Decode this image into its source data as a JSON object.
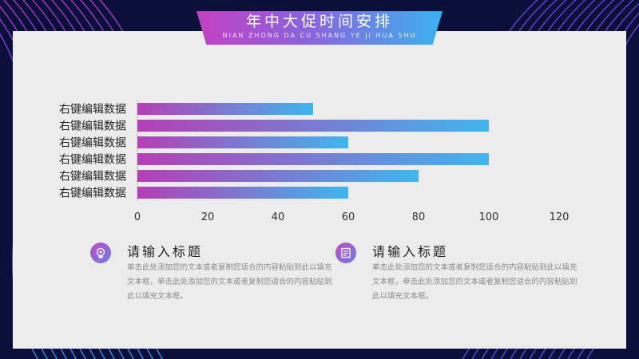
{
  "slide": {
    "title": "年中大促时间安排",
    "subtitle": "NIAN ZHONG DA CU SHANG YE JI HUA SHU"
  },
  "chart_data": {
    "type": "bar",
    "orientation": "horizontal",
    "categories": [
      "右键编辑数据",
      "右键编辑数据",
      "右键编辑数据",
      "右键编辑数据",
      "右键编辑数据",
      "右键编辑数据"
    ],
    "values": [
      50,
      100,
      60,
      100,
      80,
      60
    ],
    "xlim": [
      0,
      120
    ],
    "x_ticks": [
      "0",
      "20",
      "40",
      "60",
      "80",
      "100",
      "120"
    ],
    "grid": false,
    "legend": "none",
    "bar_gradient": [
      "#b53fb5",
      "#3fb6ee"
    ]
  },
  "info": [
    {
      "icon": "head-gear-icon",
      "title": "请输入标题",
      "body": "单击此处添加您的文本或者复制您适合的内容粘贴到此以填充文本框，单击此处添加您的文本或者复制您适合的内容粘贴到此以填充文本框。"
    },
    {
      "icon": "document-icon",
      "title": "请输入标题",
      "body": "单击此处添加您的文本或者复制您适合的内容粘贴到此以填充文本框，单击此处添加您的文本或者复制您适合的内容粘贴到此以填充文本框。"
    }
  ],
  "colors": {
    "background": "#0b0f3a",
    "panel": "#ececec",
    "accent_magenta": "#b53fb5",
    "accent_blue": "#3fb6ee"
  }
}
